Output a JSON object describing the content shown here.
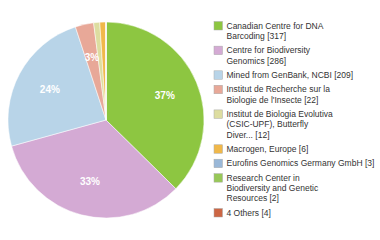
{
  "chart_data": {
    "type": "pie",
    "categories": [
      "Canadian Centre for DNA\nBarcoding [317]",
      "Centre for Biodiversity\nGenomics [286]",
      "Mined from GenBank, NCBI [209]",
      "Institut de Recherche sur la\nBiologie de l'Insecte [22]",
      "Institut de Biologia Evolutiva\n(CSIC-UPF), Butterfly\nDiver... [12]",
      "Macrogen, Europe [6]",
      "Eurofins Genomics Germany GmbH [3]",
      "Research Center in\nBiodiversity and Genetic\nResources [2]",
      "4 Others [4]"
    ],
    "values": [
      37,
      33,
      24,
      3,
      1,
      1,
      0,
      0,
      0
    ],
    "value_labels": [
      "37%",
      "33%",
      "24%",
      "3%",
      null,
      null,
      null,
      null,
      null
    ],
    "data_labels": true,
    "colors": [
      "#8dc641",
      "#d4aad4",
      "#b8d4e8",
      "#e8a898",
      "#dddda0",
      "#f0b84a",
      "#9ab8d8",
      "#98c858",
      "#cc6644"
    ],
    "legend": "right"
  }
}
